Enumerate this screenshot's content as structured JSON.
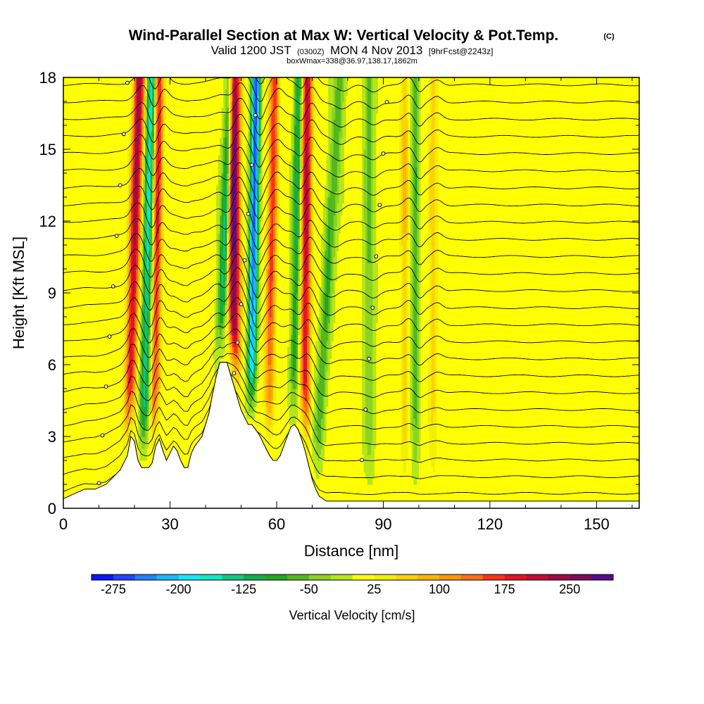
{
  "header": {
    "title": "Wind-Parallel Section at Max W: Vertical Velocity & Pot.Temp.",
    "copyright": "(C)",
    "valid_prefix": "Valid 1200 JST",
    "valid_zone": "(0300Z)",
    "valid_date": "MON 4 Nov 2013",
    "forecast": "[9hrFcst@2243z]",
    "box_info": "boxWmax=338@36.97,138.17,1862m"
  },
  "chart_data": {
    "type": "heatmap",
    "xlabel": "Distance [nm]",
    "ylabel": "Height [Kft MSL]",
    "xlim": [
      0,
      162
    ],
    "ylim": [
      0,
      18
    ],
    "x_ticks": [
      0,
      30,
      60,
      90,
      120,
      150
    ],
    "y_ticks": [
      0,
      3,
      6,
      9,
      12,
      15,
      18
    ],
    "terrain_kft": [
      [
        0,
        0.4
      ],
      [
        3,
        0.6
      ],
      [
        6,
        0.8
      ],
      [
        9,
        0.8
      ],
      [
        12,
        1.0
      ],
      [
        14,
        1.3
      ],
      [
        16,
        1.6
      ],
      [
        18,
        2.2
      ],
      [
        19,
        3.0
      ],
      [
        20,
        2.8
      ],
      [
        21,
        2.0
      ],
      [
        22,
        1.7
      ],
      [
        24,
        1.7
      ],
      [
        25,
        1.9
      ],
      [
        26,
        2.6
      ],
      [
        27,
        2.9
      ],
      [
        28,
        2.4
      ],
      [
        29,
        2.0
      ],
      [
        30,
        2.3
      ],
      [
        31,
        2.6
      ],
      [
        32,
        2.4
      ],
      [
        33,
        2.0
      ],
      [
        34,
        1.7
      ],
      [
        35,
        1.7
      ],
      [
        36,
        2.3
      ],
      [
        37,
        2.6
      ],
      [
        39,
        3.0
      ],
      [
        40,
        3.5
      ],
      [
        41,
        4.0
      ],
      [
        42,
        4.8
      ],
      [
        43,
        5.5
      ],
      [
        44,
        6.1
      ],
      [
        45,
        6.1
      ],
      [
        46,
        6.1
      ],
      [
        47,
        5.6
      ],
      [
        48,
        5.1
      ],
      [
        49,
        4.6
      ],
      [
        50,
        4.1
      ],
      [
        51,
        3.8
      ],
      [
        52,
        3.5
      ],
      [
        53,
        3.5
      ],
      [
        54,
        3.3
      ],
      [
        55,
        3.1
      ],
      [
        56,
        2.8
      ],
      [
        57,
        2.5
      ],
      [
        58,
        2.2
      ],
      [
        59,
        2.0
      ],
      [
        60,
        2.0
      ],
      [
        61,
        2.2
      ],
      [
        62,
        2.6
      ],
      [
        63,
        3.0
      ],
      [
        64,
        3.4
      ],
      [
        65,
        3.5
      ],
      [
        66,
        3.3
      ],
      [
        67,
        2.9
      ],
      [
        68,
        2.4
      ],
      [
        69,
        1.8
      ],
      [
        70,
        1.2
      ],
      [
        71,
        0.8
      ],
      [
        72,
        0.5
      ],
      [
        74,
        0.3
      ],
      [
        162,
        0.3
      ]
    ],
    "updrafts_cm_s": [
      {
        "x": 19,
        "amp": 230,
        "tilt": 0.2,
        "width": 1.5
      },
      {
        "x": 26,
        "amp": 180,
        "tilt": 0.08,
        "width": 1.2
      },
      {
        "x": 48,
        "amp": 290,
        "tilt": 0.0,
        "width": 1.6
      },
      {
        "x": 58,
        "amp": 160,
        "tilt": 0.12,
        "width": 1.3
      },
      {
        "x": 68,
        "amp": 220,
        "tilt": 0.05,
        "width": 1.4
      },
      {
        "x": 96,
        "amp": 95,
        "tilt": 0.0,
        "width": 1.1
      },
      {
        "x": 104,
        "amp": 80,
        "tilt": 0.0,
        "width": 1.2
      }
    ],
    "downdrafts_cm_s": [
      {
        "x": 23,
        "amp": -180,
        "tilt": 0.15,
        "width": 1.3
      },
      {
        "x": 44,
        "amp": -160,
        "tilt": 0.25,
        "width": 1.3
      },
      {
        "x": 53,
        "amp": -270,
        "tilt": 0.1,
        "width": 1.2
      },
      {
        "x": 65,
        "amp": -130,
        "tilt": 0.1,
        "width": 1.2
      },
      {
        "x": 73,
        "amp": -100,
        "tilt": 0.4,
        "width": 1.6
      },
      {
        "x": 86,
        "amp": -90,
        "tilt": 0.0,
        "width": 1.4
      },
      {
        "x": 99,
        "amp": -110,
        "tilt": 0.0,
        "width": 1.0
      }
    ],
    "colorbar": {
      "label": "Vertical Velocity [cm/s]",
      "levels": [
        -300,
        -275,
        -250,
        -225,
        -200,
        -175,
        -150,
        -125,
        -100,
        -75,
        -50,
        -25,
        0,
        25,
        50,
        75,
        100,
        125,
        150,
        175,
        200,
        225,
        250,
        275,
        300
      ],
      "tick_labels": [
        "-275",
        "-200",
        "-125",
        "-50",
        "25",
        "100",
        "175",
        "250"
      ],
      "colors": [
        "#0a14ff",
        "#1e46ff",
        "#1e82ff",
        "#19b9ff",
        "#14e6ff",
        "#14e6c3",
        "#12c880",
        "#10b048",
        "#20a820",
        "#52b81e",
        "#8cd21e",
        "#b4e61a",
        "#ffff00",
        "#f0f000",
        "#ffd200",
        "#ffb400",
        "#ff9600",
        "#ff6e14",
        "#ff3214",
        "#e61423",
        "#c80a32",
        "#a00a46",
        "#820a5a",
        "#5a0a8c"
      ]
    }
  }
}
